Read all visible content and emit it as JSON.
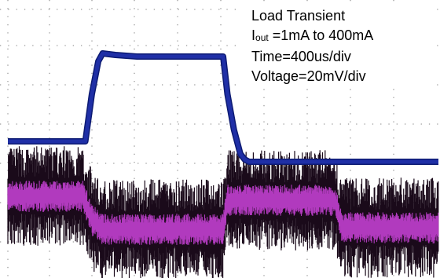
{
  "chart_data": {
    "type": "line",
    "grid": "dotted",
    "annotation": {
      "title": "Load Transient",
      "iout_symbol": "I",
      "iout_sub": "out",
      "iout_text": " =1mA to 400mA",
      "time": "Time=400us/div",
      "voltage": "Voltage=20mV/div"
    },
    "x_range": [
      0,
      10
    ],
    "series": [
      {
        "color": "#1f2fa6",
        "x": [
          0,
          1.8,
          1.95,
          2.1,
          2.2,
          2.5,
          3.0,
          5.0,
          5.1,
          5.25,
          5.4,
          5.5,
          5.6,
          10
        ],
        "y": [
          180,
          180,
          120,
          78,
          68,
          70,
          72,
          72,
          120,
          165,
          196,
          203,
          206,
          206
        ]
      },
      {
        "color": "#c23fd0",
        "noise_color": "#1a0a1a",
        "x": [
          0,
          1.75,
          1.95,
          2.2,
          5.0,
          5.1,
          7.6,
          7.75,
          10
        ],
        "y": [
          250,
          250,
          280,
          292,
          292,
          255,
          255,
          290,
          290
        ]
      }
    ]
  }
}
